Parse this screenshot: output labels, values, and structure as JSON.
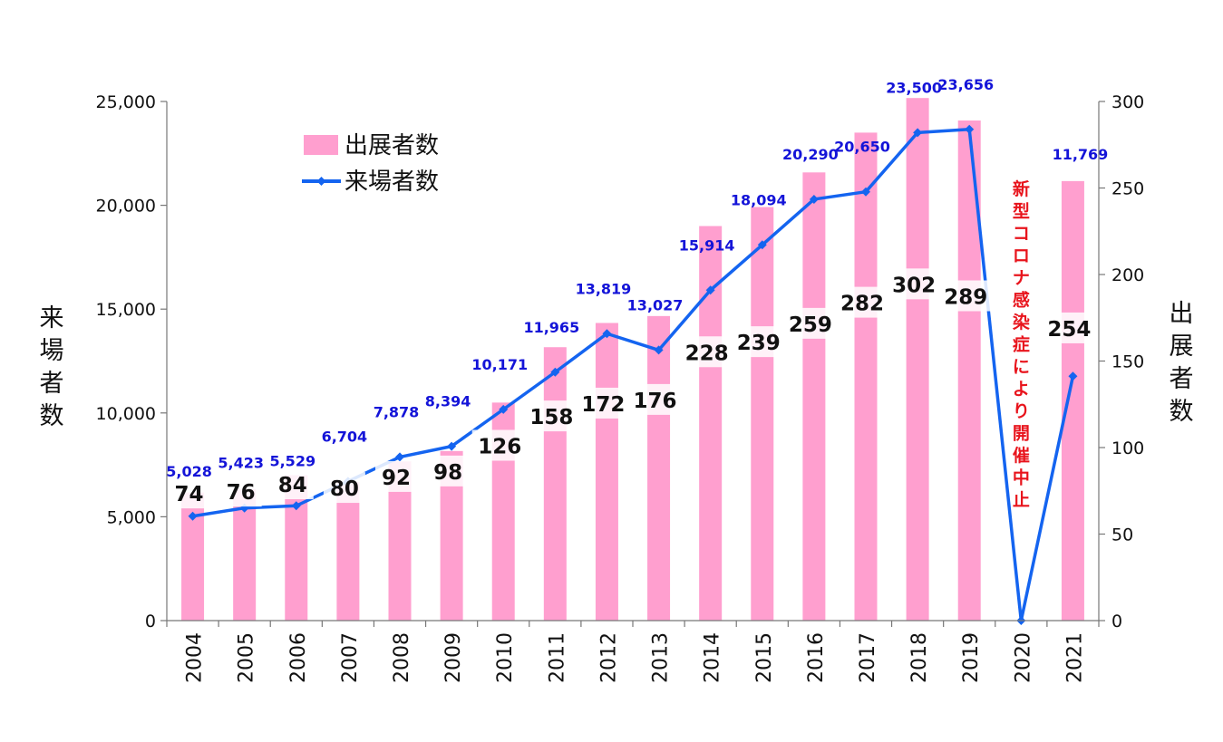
{
  "chart_data": {
    "type": "bar+line",
    "categories": [
      "2004",
      "2005",
      "2006",
      "2007",
      "2008",
      "2009",
      "2010",
      "2011",
      "2012",
      "2013",
      "2014",
      "2015",
      "2016",
      "2017",
      "2018",
      "2019",
      "2020",
      "2021"
    ],
    "series": [
      {
        "name": "出展者数",
        "type": "bar",
        "axis": "right",
        "values": [
          74,
          76,
          84,
          80,
          92,
          98,
          126,
          158,
          172,
          176,
          228,
          239,
          259,
          282,
          302,
          289,
          null,
          254
        ],
        "labels": [
          "74",
          "76",
          "84",
          "80",
          "92",
          "98",
          "126",
          "158",
          "172",
          "176",
          "228",
          "239",
          "259",
          "282",
          "302",
          "289",
          "",
          "254"
        ],
        "color": "#ff9fcf"
      },
      {
        "name": "来場者数",
        "type": "line",
        "axis": "left",
        "values": [
          5028,
          5423,
          5529,
          6704,
          7878,
          8394,
          10171,
          11965,
          13819,
          13027,
          15914,
          18094,
          20290,
          20650,
          23500,
          23656,
          0,
          11769
        ],
        "labels": [
          "5,028",
          "5,423",
          "5,529",
          "6,704",
          "7,878",
          "8,394",
          "10,171",
          "11,965",
          "13,819",
          "13,027",
          "15,914",
          "18,094",
          "20,290",
          "20,650",
          "23,500",
          "23,656",
          "",
          "11,769"
        ],
        "color": "#1464f0"
      }
    ],
    "y_left": {
      "label": "来場者数",
      "range": [
        0,
        25000
      ],
      "ticks": [
        "0",
        "5,000",
        "10,000",
        "15,000",
        "20,000",
        "25,000"
      ]
    },
    "y_right": {
      "label": "出展者数",
      "range": [
        0,
        300
      ],
      "ticks": [
        "0",
        "50",
        "100",
        "150",
        "200",
        "250",
        "300"
      ]
    },
    "legend": {
      "position": "top-left",
      "items": [
        {
          "label": "出展者数",
          "kind": "bar"
        },
        {
          "label": "来場者数",
          "kind": "line"
        }
      ]
    },
    "annotation": "新型コロナ感染症により開催中止",
    "highlight_color": "#e8141c",
    "grid": false
  }
}
